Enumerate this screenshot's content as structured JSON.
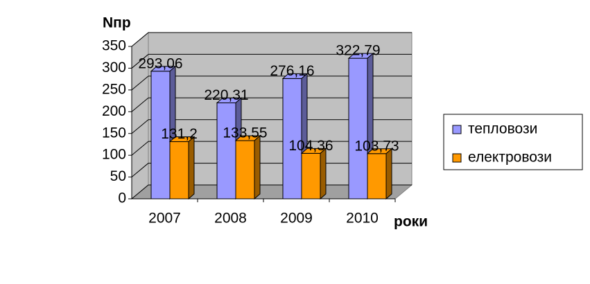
{
  "chart_data": {
    "type": "bar3d",
    "y_label": "Nпр",
    "x_label": "роки",
    "categories": [
      "2007",
      "2008",
      "2009",
      "2010"
    ],
    "series": [
      {
        "name": "тепловози",
        "color": "#9999ff",
        "values": [
          293.06,
          220.31,
          276.16,
          322.79
        ],
        "value_labels": [
          "293,06",
          "220,31",
          "276,16",
          "322,79"
        ]
      },
      {
        "name": "електровози",
        "color": "#ff9900",
        "values": [
          131.2,
          133.55,
          104.36,
          103.73
        ],
        "value_labels": [
          "131,2",
          "133,55",
          "104,36",
          "103,73"
        ]
      }
    ],
    "ylim": [
      0,
      350
    ],
    "yticks": [
      0,
      50,
      100,
      150,
      200,
      250,
      300,
      350
    ],
    "grid": true,
    "legend": "right"
  }
}
